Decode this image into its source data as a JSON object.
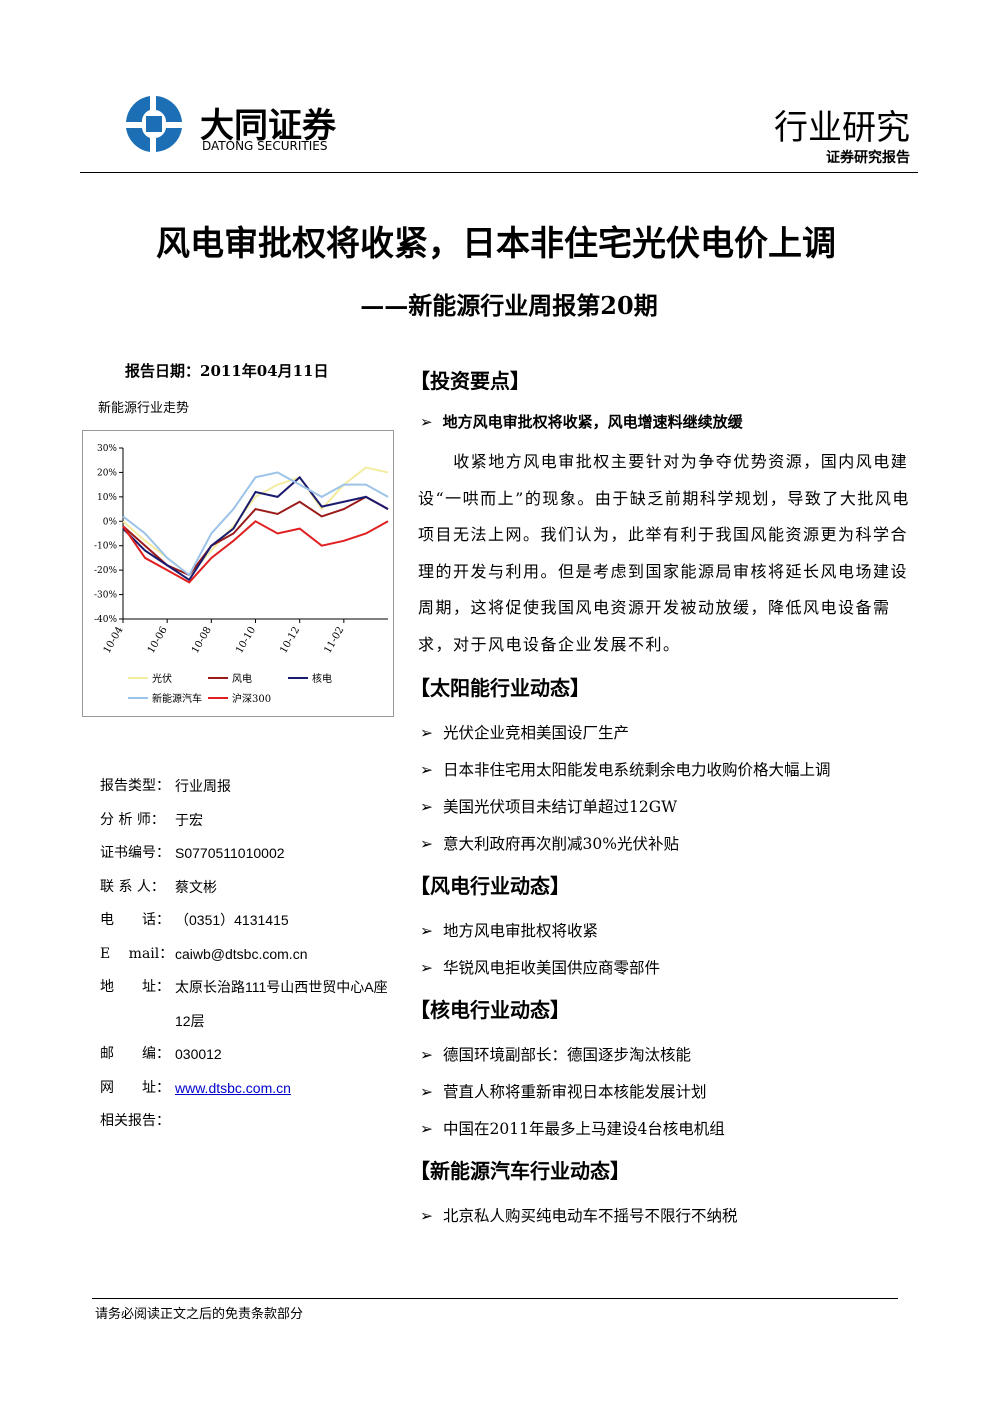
{
  "header": {
    "company": "大同证券",
    "company_en": "DATONG SECURITIES",
    "category": "行业研究",
    "subcategory": "证券研究报告"
  },
  "title": "风电审批权将收紧，日本非住宅光伏电价上调",
  "subtitle": "——新能源行业周报第20期",
  "report_date": "报告日期：2011年04月11日",
  "chart_data": {
    "type": "line",
    "title": "新能源行业走势",
    "categories": [
      "10-04",
      null,
      "10-06",
      null,
      "10-08",
      null,
      "10-10",
      null,
      "10-12",
      null,
      "11-02",
      null,
      null
    ],
    "series": [
      {
        "name": "光伏",
        "color": "#f3eca0",
        "values": [
          0,
          -8,
          -15,
          -22,
          -12,
          -2,
          10,
          15,
          18,
          5,
          15,
          22,
          20
        ]
      },
      {
        "name": "风电",
        "color": "#9b1b1b",
        "values": [
          -2,
          -10,
          -18,
          -22,
          -10,
          -5,
          5,
          3,
          8,
          2,
          5,
          10,
          5
        ]
      },
      {
        "name": "核电",
        "color": "#1a1a6e",
        "values": [
          -3,
          -12,
          -18,
          -24,
          -10,
          -3,
          12,
          10,
          18,
          6,
          8,
          10,
          5
        ]
      },
      {
        "name": "新能源汽车",
        "color": "#9cc3e8",
        "values": [
          2,
          -5,
          -15,
          -22,
          -5,
          5,
          18,
          20,
          15,
          10,
          15,
          15,
          10
        ]
      },
      {
        "name": "沪深300",
        "color": "#e02020",
        "values": [
          -2,
          -15,
          -20,
          -25,
          -15,
          -8,
          0,
          -5,
          -3,
          -10,
          -8,
          -5,
          0
        ]
      }
    ],
    "ylim": [
      -40,
      30
    ],
    "yticks": [
      {
        "value": 30,
        "label": "30%"
      },
      {
        "value": 20,
        "label": "20%"
      },
      {
        "value": 10,
        "label": "10%"
      },
      {
        "value": 0,
        "label": "0%"
      },
      {
        "value": -10,
        "label": "-10%"
      },
      {
        "value": -20,
        "label": "-20%"
      },
      {
        "value": -30,
        "label": "-30%"
      },
      {
        "value": -40,
        "label": "-40%"
      }
    ],
    "grid": false
  },
  "info": [
    {
      "label": "报告类型：",
      "value": "行业周报"
    },
    {
      "label": "分 析 师：",
      "value": "于宏"
    },
    {
      "label": "证书编号：",
      "value": "S0770511010002"
    },
    {
      "label": "联 系 人：",
      "value": "蔡文彬"
    },
    {
      "label": "电　　话：",
      "value": "（0351）4131415"
    },
    {
      "label": "E　 mail：",
      "value": "caiwb@dtsbc.com.cn"
    },
    {
      "label": "地　　址：",
      "value": "太原长治路111号山西世贸中心A座12层"
    },
    {
      "label": "邮　　编：",
      "value": "030012"
    },
    {
      "label": "网　　址：",
      "value": "www.dtsbc.com.cn"
    },
    {
      "label": "相关报告："
    }
  ],
  "sections": [
    {
      "heading": "【投资要点】",
      "subheading": "地方风电审批权将收紧，风电增速料继续放缓",
      "paragraph": "收紧地方风电审批权主要针对为争夺优势资源，国内风电建设“一哄而上”的现象。由于缺乏前期科学规划，导致了大批风电项目无法上网。我们认为，此举有利于我国风能资源更为科学合理的开发与利用。但是考虑到国家能源局审核将延长风电场建设周期，这将促使我国风电资源开发被动放缓，降低风电设备需求，对于风电设备企业发展不利。"
    },
    {
      "heading": "【太阳能行业动态】",
      "bullets": [
        "光伏企业竞相美国设厂生产",
        "日本非住宅用太阳能发电系统剩余电力收购价格大幅上调",
        "美国光伏项目未结订单超过12GW",
        "意大利政府再次削减30%光伏补贴"
      ]
    },
    {
      "heading": "【风电行业动态】",
      "bullets": [
        "地方风电审批权将收紧",
        "华锐风电拒收美国供应商零部件"
      ]
    },
    {
      "heading": "【核电行业动态】",
      "bullets": [
        "德国环境副部长：德国逐步淘汰核能",
        "菅直人称将重新审视日本核能发展计划",
        "中国在2011年最多上马建设4台核电机组"
      ]
    },
    {
      "heading": "【新能源汽车行业动态】",
      "bullets": [
        "北京私人购买纯电动车不摇号不限行不纳税"
      ]
    }
  ],
  "footer": "请务必阅读正文之后的免责条款部分"
}
